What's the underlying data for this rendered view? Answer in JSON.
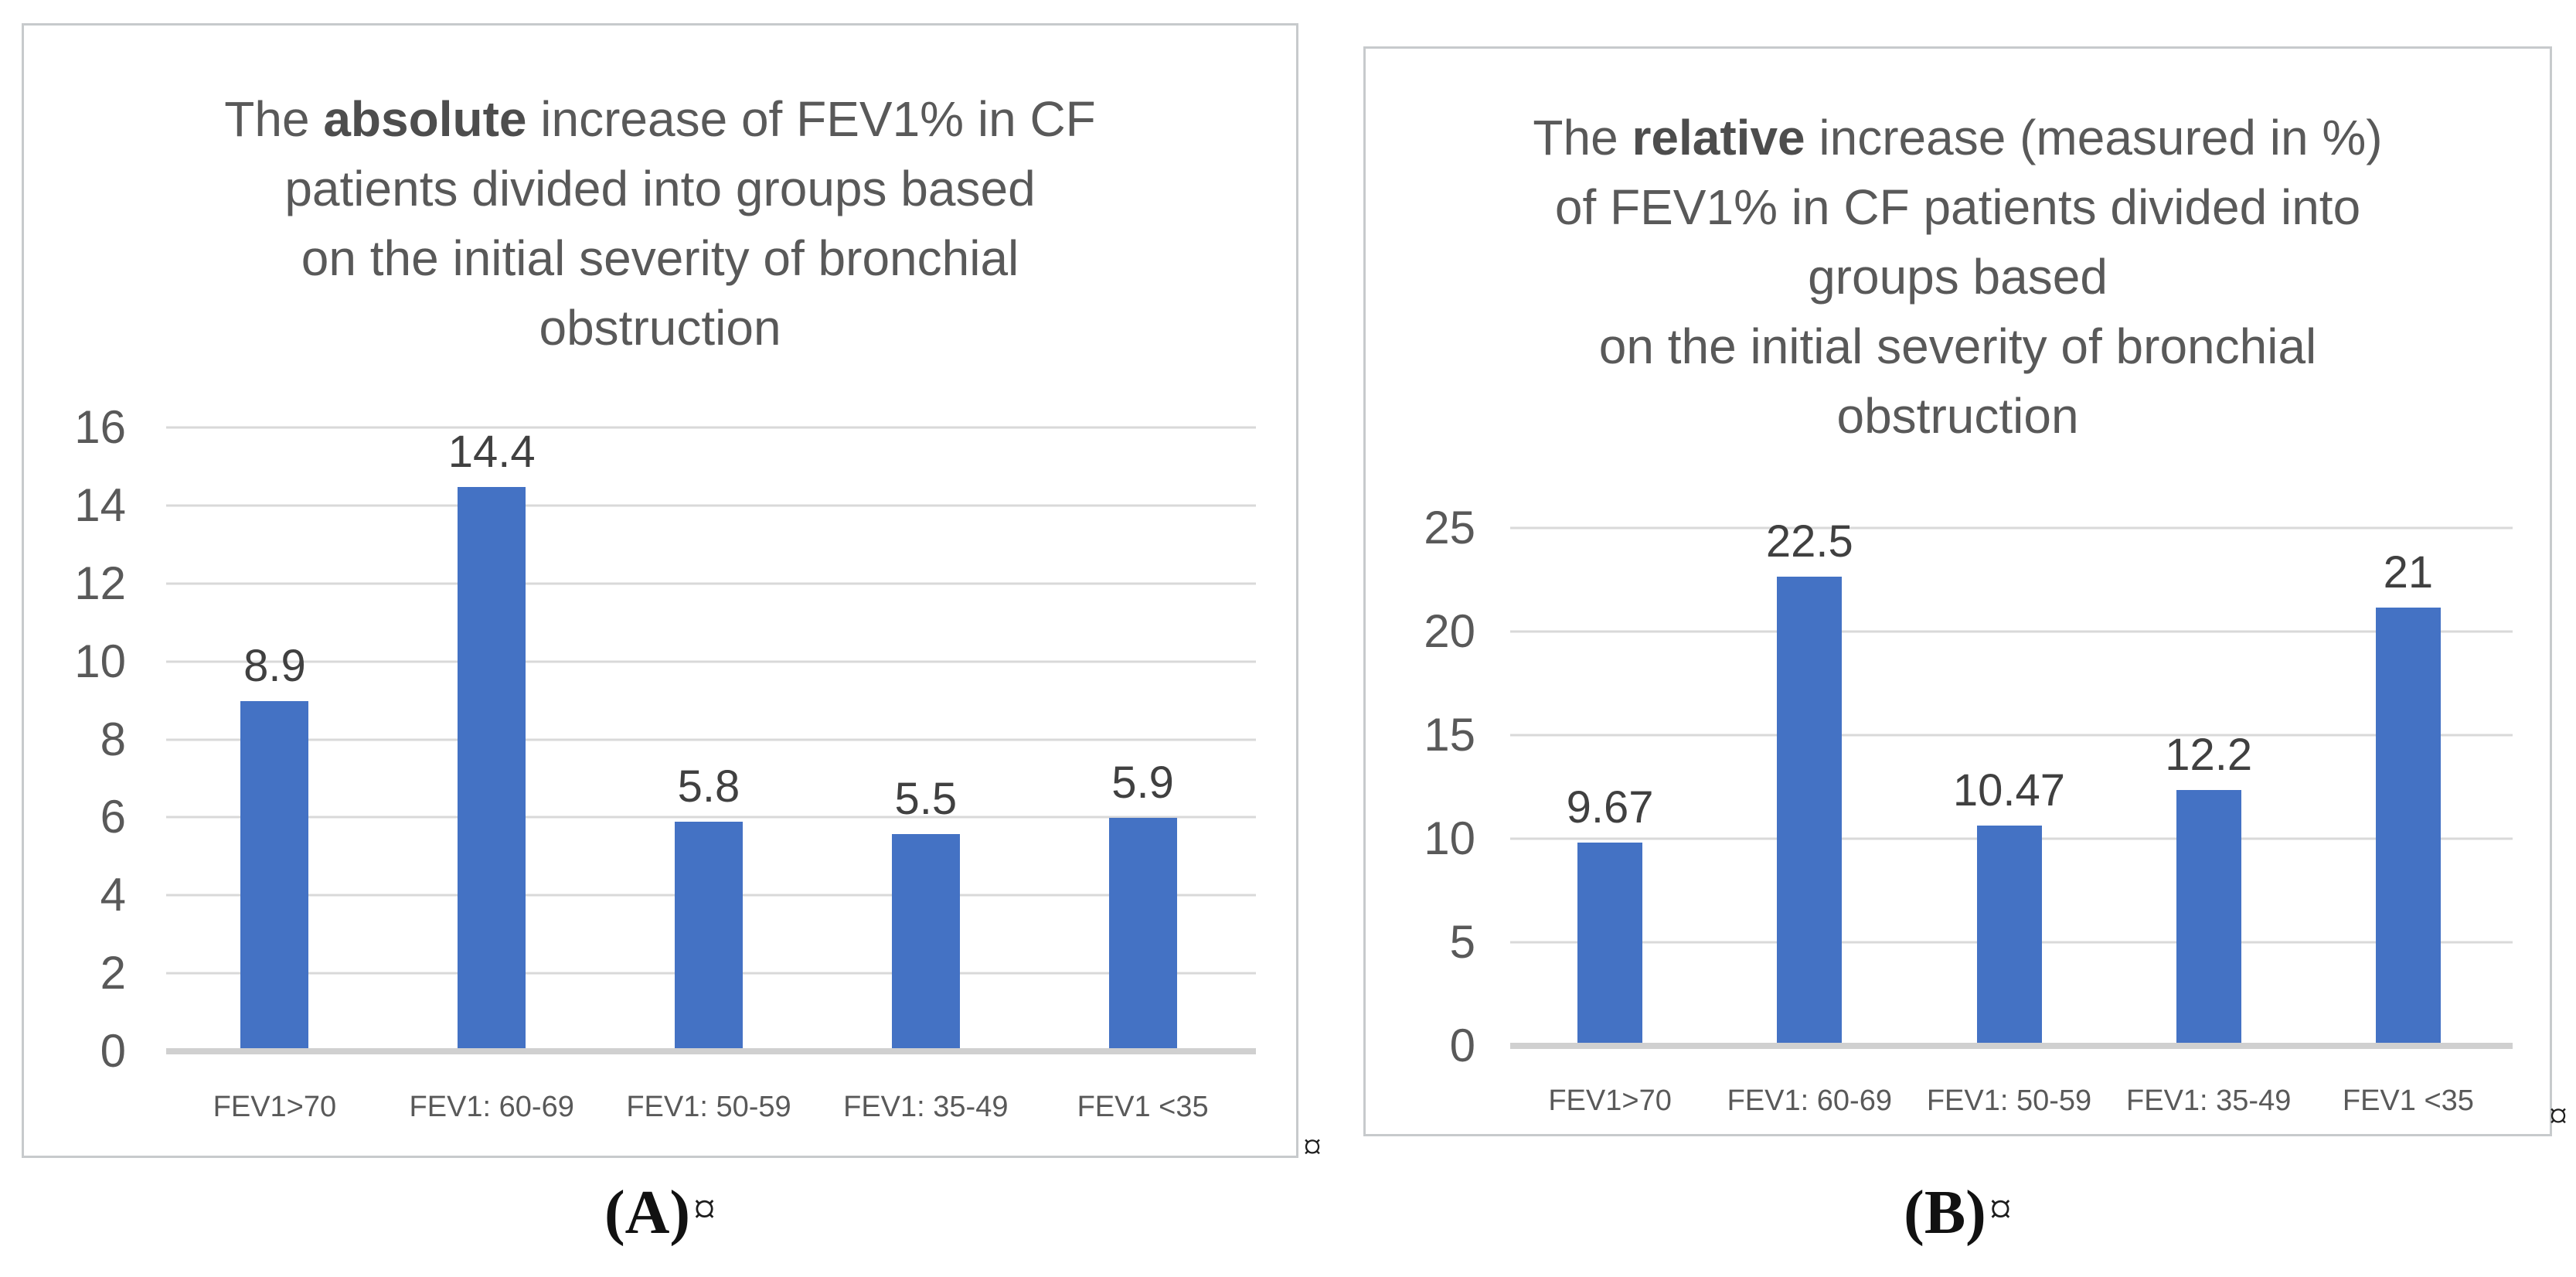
{
  "page": {
    "background": "#ffffff"
  },
  "colors": {
    "bar": "#4472C4",
    "gridline": "#D9D9D9",
    "baseline": "#D0D0D0",
    "chart_text": "#595959",
    "data_label_text": "#404040",
    "panel_border": "#C7CACC",
    "caption_text": "#111111"
  },
  "captions": {
    "a_label": "(A)",
    "a_mark": "¤",
    "b_label": "(B)",
    "b_mark": "¤"
  },
  "stray_marks": {
    "after_panel_a": "¤",
    "after_panel_b": "¤"
  },
  "chart_data": [
    {
      "id": "A",
      "type": "bar",
      "title": "The absolute increase of FEV1% in CF patients divided into groups based on the initial severity of bronchial obstruction",
      "title_lines": [
        "The absolute increase of FEV1% in CF",
        "patients divided into groups based",
        "on the initial severity of bronchial",
        "obstruction"
      ],
      "title_bold_word": "absolute",
      "categories": [
        "FEV1>70",
        "FEV1: 60-69",
        "FEV1: 50-59",
        "FEV1: 35-49",
        "FEV1 <35"
      ],
      "values": [
        8.9,
        14.4,
        5.8,
        5.5,
        5.9
      ],
      "data_labels": [
        "8.9",
        "14.4",
        "5.8",
        "5.5",
        "5.9"
      ],
      "xlabel": "",
      "ylabel": "",
      "ylim": [
        0,
        16
      ],
      "yticks": [
        0,
        2,
        4,
        6,
        8,
        10,
        12,
        14,
        16
      ],
      "grid": true,
      "legend": false,
      "bar_color": "#4472C4"
    },
    {
      "id": "B",
      "type": "bar",
      "title": "The relative increase (measured in %) of FEV1% in CF patients divided into groups based on the initial severity of bronchial obstruction",
      "title_lines": [
        "The relative increase (measured in %)",
        "of FEV1% in CF patients divided into",
        "groups based",
        "on the initial severity of bronchial",
        "obstruction"
      ],
      "title_bold_word": "relative",
      "categories": [
        "FEV1>70",
        "FEV1: 60-69",
        "FEV1: 50-59",
        "FEV1: 35-49",
        "FEV1 <35"
      ],
      "values": [
        9.67,
        22.5,
        10.47,
        12.2,
        21
      ],
      "data_labels": [
        "9.67",
        "22.5",
        "10.47",
        "12.2",
        "21"
      ],
      "xlabel": "",
      "ylabel": "",
      "ylim": [
        0,
        25
      ],
      "yticks": [
        0,
        5,
        10,
        15,
        20,
        25
      ],
      "grid": true,
      "legend": false,
      "bar_color": "#4472C4"
    }
  ]
}
